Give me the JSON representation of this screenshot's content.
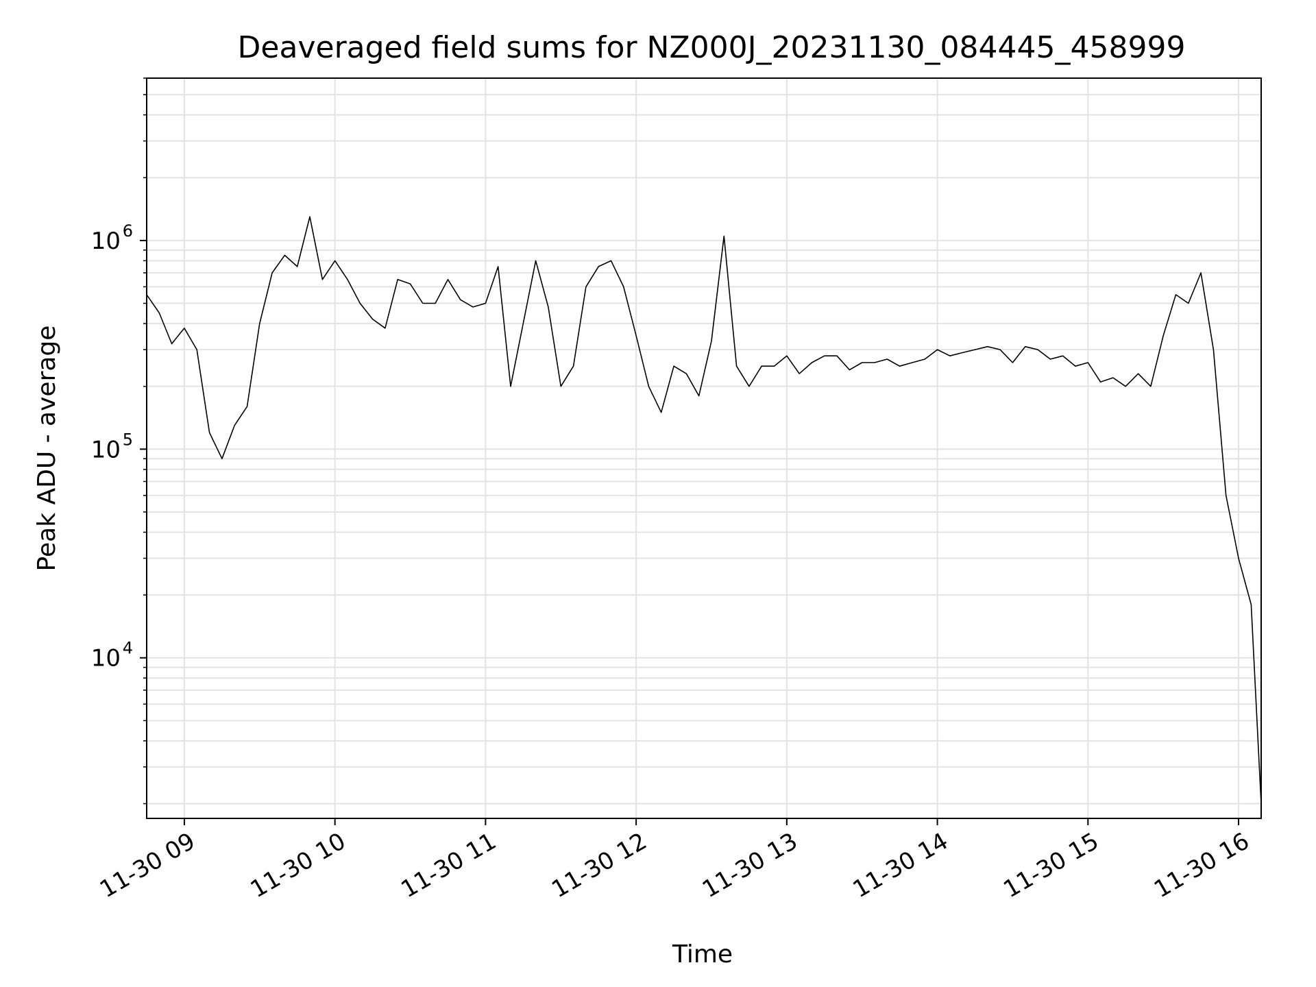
{
  "chart_data": {
    "type": "line",
    "title": "Deaveraged field sums for NZ000J_20231130_084445_458999",
    "xlabel": "Time",
    "ylabel": "Peak ADU - average",
    "yscale": "log",
    "xlim": [
      "2023-11-30 08:45",
      "2023-11-30 16:09"
    ],
    "ylim": [
      1700,
      6000000
    ],
    "grid": true,
    "x_ticks": [
      {
        "t": "2023-11-30 09:00",
        "label": "11-30 09"
      },
      {
        "t": "2023-11-30 10:00",
        "label": "11-30 10"
      },
      {
        "t": "2023-11-30 11:00",
        "label": "11-30 11"
      },
      {
        "t": "2023-11-30 12:00",
        "label": "11-30 12"
      },
      {
        "t": "2023-11-30 13:00",
        "label": "11-30 13"
      },
      {
        "t": "2023-11-30 14:00",
        "label": "11-30 14"
      },
      {
        "t": "2023-11-30 15:00",
        "label": "11-30 15"
      },
      {
        "t": "2023-11-30 16:00",
        "label": "11-30 16"
      }
    ],
    "y_ticks": [
      {
        "value": 10000,
        "base": "10",
        "exp": "4"
      },
      {
        "value": 100000,
        "base": "10",
        "exp": "5"
      },
      {
        "value": 1000000,
        "base": "10",
        "exp": "6"
      }
    ],
    "series": [
      {
        "color": "#000000",
        "x": [
          "2023-11-30 08:45",
          "2023-11-30 08:50",
          "2023-11-30 08:55",
          "2023-11-30 09:00",
          "2023-11-30 09:05",
          "2023-11-30 09:10",
          "2023-11-30 09:15",
          "2023-11-30 09:20",
          "2023-11-30 09:25",
          "2023-11-30 09:30",
          "2023-11-30 09:35",
          "2023-11-30 09:40",
          "2023-11-30 09:45",
          "2023-11-30 09:50",
          "2023-11-30 09:55",
          "2023-11-30 10:00",
          "2023-11-30 10:05",
          "2023-11-30 10:10",
          "2023-11-30 10:15",
          "2023-11-30 10:20",
          "2023-11-30 10:25",
          "2023-11-30 10:30",
          "2023-11-30 10:35",
          "2023-11-30 10:40",
          "2023-11-30 10:45",
          "2023-11-30 10:50",
          "2023-11-30 10:55",
          "2023-11-30 11:00",
          "2023-11-30 11:05",
          "2023-11-30 11:10",
          "2023-11-30 11:15",
          "2023-11-30 11:20",
          "2023-11-30 11:25",
          "2023-11-30 11:30",
          "2023-11-30 11:35",
          "2023-11-30 11:40",
          "2023-11-30 11:45",
          "2023-11-30 11:50",
          "2023-11-30 11:55",
          "2023-11-30 12:00",
          "2023-11-30 12:05",
          "2023-11-30 12:10",
          "2023-11-30 12:15",
          "2023-11-30 12:20",
          "2023-11-30 12:25",
          "2023-11-30 12:30",
          "2023-11-30 12:35",
          "2023-11-30 12:40",
          "2023-11-30 12:45",
          "2023-11-30 12:50",
          "2023-11-30 12:55",
          "2023-11-30 13:00",
          "2023-11-30 13:05",
          "2023-11-30 13:10",
          "2023-11-30 13:15",
          "2023-11-30 13:20",
          "2023-11-30 13:25",
          "2023-11-30 13:30",
          "2023-11-30 13:35",
          "2023-11-30 13:40",
          "2023-11-30 13:45",
          "2023-11-30 13:50",
          "2023-11-30 13:55",
          "2023-11-30 14:00",
          "2023-11-30 14:05",
          "2023-11-30 14:10",
          "2023-11-30 14:15",
          "2023-11-30 14:20",
          "2023-11-30 14:25",
          "2023-11-30 14:30",
          "2023-11-30 14:35",
          "2023-11-30 14:40",
          "2023-11-30 14:45",
          "2023-11-30 14:50",
          "2023-11-30 14:55",
          "2023-11-30 15:00",
          "2023-11-30 15:05",
          "2023-11-30 15:10",
          "2023-11-30 15:15",
          "2023-11-30 15:20",
          "2023-11-30 15:25",
          "2023-11-30 15:30",
          "2023-11-30 15:35",
          "2023-11-30 15:40",
          "2023-11-30 15:45",
          "2023-11-30 15:50",
          "2023-11-30 15:55",
          "2023-11-30 16:00",
          "2023-11-30 16:05",
          "2023-11-30 16:09"
        ],
        "values": [
          550000,
          450000,
          320000,
          380000,
          300000,
          120000,
          90000,
          130000,
          160000,
          400000,
          700000,
          850000,
          750000,
          1300000,
          650000,
          800000,
          650000,
          500000,
          420000,
          380000,
          650000,
          620000,
          500000,
          500000,
          650000,
          520000,
          480000,
          500000,
          750000,
          200000,
          400000,
          800000,
          480000,
          200000,
          250000,
          600000,
          750000,
          800000,
          600000,
          350000,
          200000,
          150000,
          250000,
          230000,
          180000,
          330000,
          1050000,
          250000,
          200000,
          250000,
          250000,
          280000,
          230000,
          260000,
          280000,
          280000,
          240000,
          260000,
          260000,
          270000,
          250000,
          260000,
          270000,
          300000,
          280000,
          290000,
          300000,
          310000,
          300000,
          260000,
          310000,
          300000,
          270000,
          280000,
          250000,
          260000,
          210000,
          220000,
          200000,
          230000,
          200000,
          350000,
          550000,
          500000,
          700000,
          300000,
          60000,
          30000,
          18000,
          2000
        ]
      }
    ]
  }
}
